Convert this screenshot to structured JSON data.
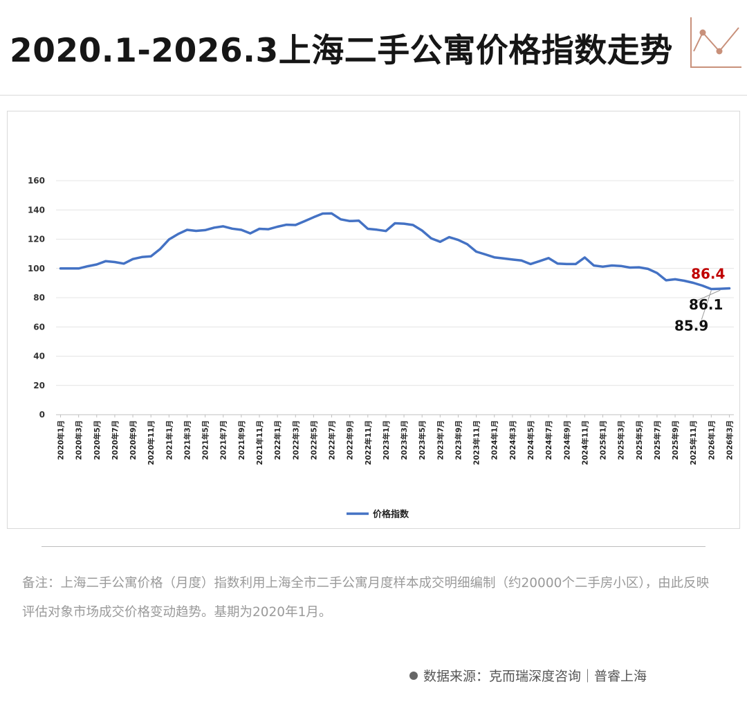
{
  "title": "2020.1-2026.3上海二手公寓价格指数走势",
  "colors": {
    "line": "#4472c4",
    "highlight": "#c00000",
    "icon": "#c8907a"
  },
  "note": "备注：上海二手公寓价格（月度）指数利用上海全市二手公寓月度样本成交明细编制（约20000个二手房小区），由此反映评估对象市场成交价格变动趋势。基期为2020年1月。",
  "source": {
    "label": "数据来源：克而瑞深度咨询｜普睿上海"
  },
  "chart_data": {
    "type": "line",
    "title": "2020.1-2026.3上海二手公寓价格指数走势",
    "xlabel": "",
    "ylabel": "",
    "ylim": [
      0,
      160
    ],
    "yticks": [
      "0",
      "20",
      "40",
      "60",
      "80",
      "100",
      "120",
      "140",
      "160"
    ],
    "grid": true,
    "legend": {
      "position": "bottom",
      "entries": [
        "价格指数"
      ]
    },
    "categories": [
      "2020年1月",
      "2020年2月",
      "2020年3月",
      "2020年4月",
      "2020年5月",
      "2020年6月",
      "2020年7月",
      "2020年8月",
      "2020年9月",
      "2020年10月",
      "2020年11月",
      "2020年12月",
      "2021年1月",
      "2021年2月",
      "2021年3月",
      "2021年4月",
      "2021年5月",
      "2021年6月",
      "2021年7月",
      "2021年8月",
      "2021年9月",
      "2021年10月",
      "2021年11月",
      "2021年12月",
      "2022年1月",
      "2022年2月",
      "2022年3月",
      "2022年4月",
      "2022年5月",
      "2022年6月",
      "2022年7月",
      "2022年8月",
      "2022年9月",
      "2022年10月",
      "2022年11月",
      "2022年12月",
      "2023年1月",
      "2023年2月",
      "2023年3月",
      "2023年4月",
      "2023年5月",
      "2023年6月",
      "2023年7月",
      "2023年8月",
      "2023年9月",
      "2023年10月",
      "2023年11月",
      "2023年12月",
      "2024年1月",
      "2024年2月",
      "2024年3月",
      "2024年4月",
      "2024年5月",
      "2024年6月",
      "2024年7月",
      "2024年8月",
      "2024年9月",
      "2024年10月",
      "2024年11月",
      "2024年12月",
      "2025年1月",
      "2025年2月",
      "2025年3月",
      "2025年4月",
      "2025年5月",
      "2025年6月",
      "2025年7月",
      "2025年8月",
      "2025年9月",
      "2025年10月",
      "2025年11月",
      "2025年12月",
      "2026年1月",
      "2026年2月",
      "2026年3月"
    ],
    "tick_labels": [
      "2020年1月",
      "2020年3月",
      "2020年5月",
      "2020年7月",
      "2020年9月",
      "2020年11月",
      "2021年1月",
      "2021年3月",
      "2021年5月",
      "2021年7月",
      "2021年9月",
      "2021年11月",
      "2022年1月",
      "2022年3月",
      "2022年5月",
      "2022年7月",
      "2022年9月",
      "2022年11月",
      "2023年1月",
      "2023年3月",
      "2023年5月",
      "2023年7月",
      "2023年9月",
      "2023年11月",
      "2024年1月",
      "2024年3月",
      "2024年5月",
      "2024年7月",
      "2024年9月",
      "2024年11月",
      "2025年1月",
      "2025年3月",
      "2025年5月",
      "2025年7月",
      "2025年9月",
      "2025年11月",
      "2026年1月",
      "2026年3月"
    ],
    "series": [
      {
        "name": "价格指数",
        "values": [
          100,
          100,
          100,
          101.5,
          102.7,
          105,
          104.4,
          103.3,
          106.4,
          107.8,
          108.3,
          113.2,
          119.8,
          123.5,
          126.4,
          125.7,
          126.2,
          127.9,
          128.8,
          127.2,
          126.4,
          124,
          127.1,
          126.8,
          128.5,
          129.9,
          129.7,
          132.3,
          135,
          137.5,
          137.6,
          133.6,
          132.4,
          132.7,
          127.1,
          126.5,
          125.6,
          130.9,
          130.6,
          129.7,
          125.9,
          120.6,
          118.2,
          121.4,
          119.5,
          116.6,
          111.5,
          109.6,
          107.6,
          106.9,
          106.1,
          105.4,
          103,
          105,
          107.1,
          103.3,
          103,
          103,
          107.5,
          102,
          101.2,
          102,
          101.7,
          100.6,
          100.8,
          99.7,
          96.9,
          91.9,
          92.6,
          91.6,
          90.2,
          88.3,
          85.9,
          86.1,
          86.4
        ]
      }
    ],
    "annotations": [
      {
        "label": "85.9",
        "category": "2026年1月",
        "value": 85.9
      },
      {
        "label": "86.1",
        "category": "2026年2月",
        "value": 86.1
      },
      {
        "label": "86.4",
        "category": "2026年3月",
        "value": 86.4,
        "highlight": true
      }
    ]
  }
}
